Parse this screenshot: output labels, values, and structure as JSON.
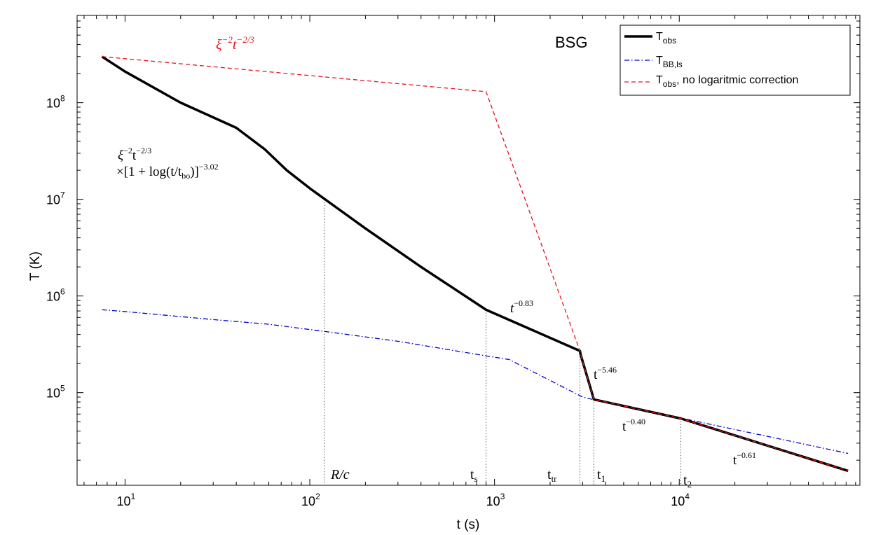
{
  "chart_data": {
    "type": "line",
    "title": "",
    "panel_label": "BSG",
    "xlabel": "t (s)",
    "ylabel": "T (K)",
    "xscale": "log",
    "yscale": "log",
    "xlim": [
      5.5,
      95000
    ],
    "ylim": [
      11000,
      800000000
    ],
    "grid": false,
    "legend": {
      "position": "top-right"
    },
    "x_ticks": [
      {
        "base": "10",
        "exp": "1",
        "value": 10
      },
      {
        "base": "10",
        "exp": "2",
        "value": 100
      },
      {
        "base": "10",
        "exp": "3",
        "value": 1000
      },
      {
        "base": "10",
        "exp": "4",
        "value": 10000
      }
    ],
    "y_ticks": [
      {
        "base": "10",
        "exp": "5",
        "value": 100000
      },
      {
        "base": "10",
        "exp": "6",
        "value": 1000000
      },
      {
        "base": "10",
        "exp": "7",
        "value": 10000000
      },
      {
        "base": "10",
        "exp": "8",
        "value": 100000000
      }
    ],
    "series": [
      {
        "legend_main": "T",
        "legend_sub": "obs",
        "legend_rest": "",
        "color": "#000000",
        "style": "solid",
        "points": [
          [
            7.5,
            300000000
          ],
          [
            10,
            210000000
          ],
          [
            20,
            100000000
          ],
          [
            40,
            55000000
          ],
          [
            57,
            33000000
          ],
          [
            75,
            20000000
          ],
          [
            100,
            13000000
          ],
          [
            200,
            5000000
          ],
          [
            400,
            2000000
          ],
          [
            900,
            720000
          ],
          [
            2900,
            270000
          ],
          [
            2920,
            250000
          ],
          [
            3450,
            85000
          ],
          [
            10200,
            54000
          ],
          [
            82000,
            15500
          ]
        ]
      },
      {
        "legend_main": "T",
        "legend_sub": "BB,ls",
        "legend_rest": "",
        "color": "#0000cc",
        "style": "dashdot",
        "points": [
          [
            7.5,
            720000
          ],
          [
            10,
            690000
          ],
          [
            30,
            570000
          ],
          [
            60,
            510000
          ],
          [
            120,
            430000
          ],
          [
            300,
            340000
          ],
          [
            900,
            240000
          ],
          [
            1200,
            220000
          ],
          [
            3000,
            90000
          ],
          [
            3500,
            84000
          ],
          [
            10000,
            55000
          ],
          [
            82000,
            23500
          ]
        ]
      },
      {
        "legend_main": "T",
        "legend_sub": "obs",
        "legend_rest": ", no logaritmic correction",
        "color": "#e8141c",
        "style": "dashed",
        "points": [
          [
            7.5,
            300000000
          ],
          [
            900,
            130000000
          ],
          [
            2900,
            270000
          ],
          [
            2920,
            250000
          ],
          [
            3450,
            85000
          ],
          [
            10200,
            54000
          ],
          [
            82000,
            15500
          ]
        ]
      }
    ],
    "vertical_markers": [
      {
        "x": 120,
        "y_top": 10000000,
        "label": "R/c",
        "label_style": "italic"
      },
      {
        "x": 900,
        "y_top": 720000,
        "label": "t",
        "sub": "s"
      },
      {
        "x": 2900,
        "y_top": 270000,
        "label": "t",
        "sub": "tr"
      },
      {
        "x": 3450,
        "y_top": 85000,
        "label": "t",
        "sub": "1"
      },
      {
        "x": 10200,
        "y_top": 54000,
        "label": "t",
        "sub": "2"
      }
    ],
    "annotations": {
      "red_formula": {
        "base": "ξ",
        "sup1": "−2",
        "mid": "t",
        "sup2": "−2/3",
        "color": "#e8141c"
      },
      "black_formula_line1": {
        "base": "ξ",
        "sup1": "−2",
        "mid": "t",
        "sup2": "−2/3"
      },
      "black_formula_line2": {
        "pre": "×[1 + log(t/t",
        "sub": "bo",
        "post": ")]",
        "sup": "−3.02"
      },
      "slopes": [
        {
          "base": "t",
          "sup": "−0.83",
          "italic": true
        },
        {
          "base": "t",
          "sup": "−5.46"
        },
        {
          "base": "t",
          "sup": "−0.40"
        },
        {
          "base": "t",
          "sup": "−0.61"
        }
      ]
    }
  }
}
